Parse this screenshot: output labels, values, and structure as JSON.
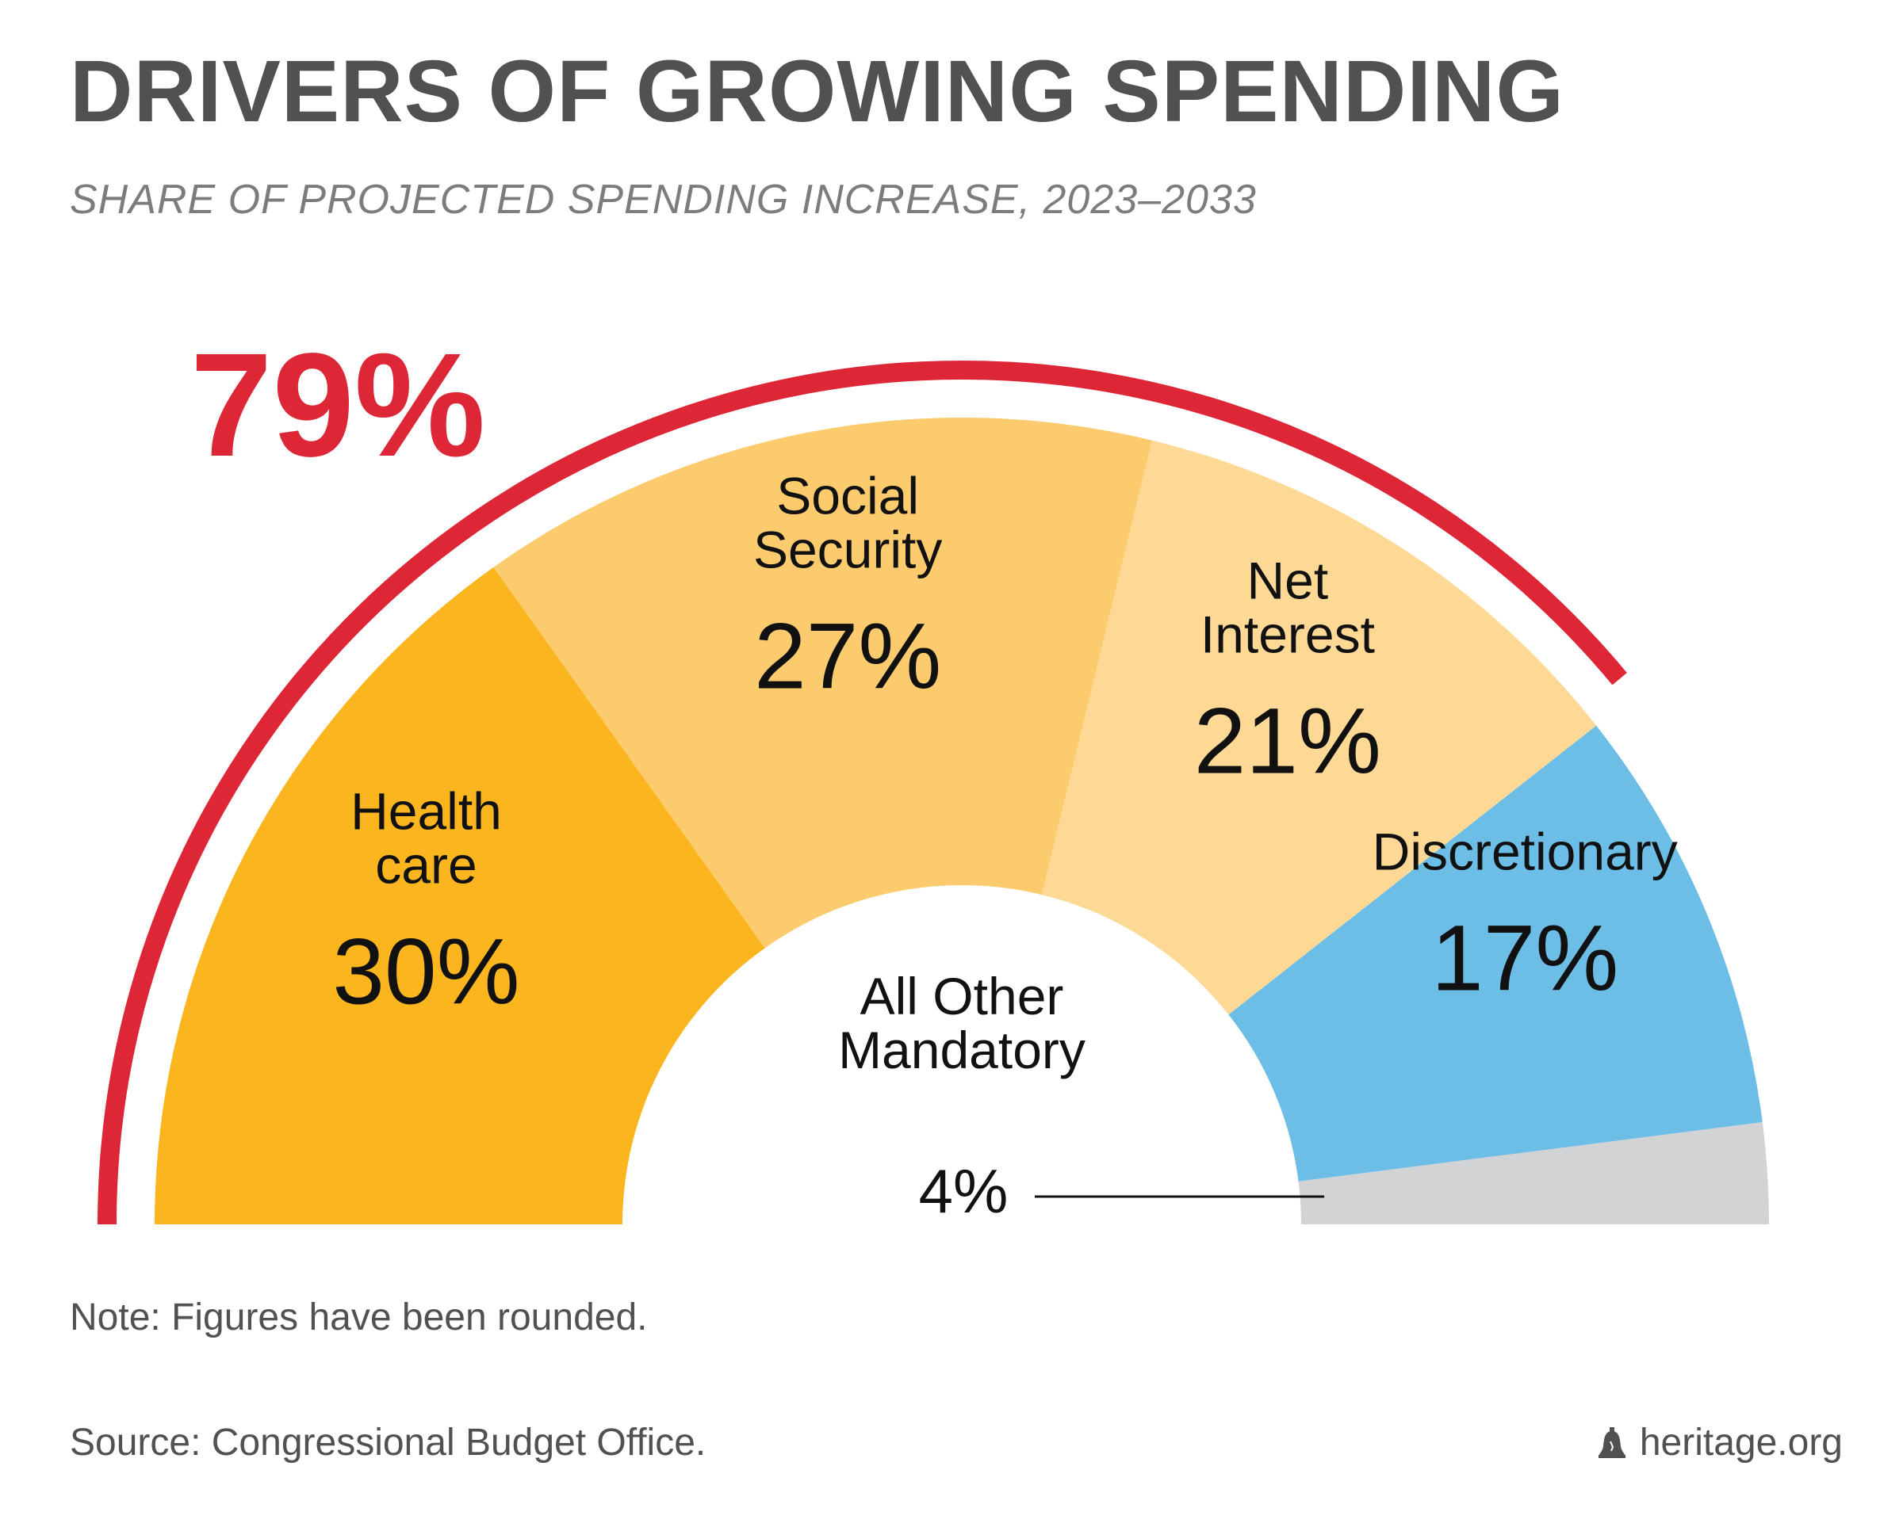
{
  "title": "DRIVERS OF GROWING SPENDING",
  "subtitle": "SHARE OF PROJECTED SPENDING INCREASE, 2023–2033",
  "note": "Note: Figures have been rounded.",
  "source": "Source: Congressional Budget Office.",
  "credit": "heritage.org",
  "credit_icon": "liberty-bell-icon",
  "colors": {
    "title": "#505153",
    "subtitle": "#7b7c7e",
    "bracket": "#dd2736",
    "label": "#111111"
  },
  "chart_data": {
    "type": "pie",
    "shape": "half-donut",
    "title": "DRIVERS OF GROWING SPENDING",
    "subtitle": "SHARE OF PROJECTED SPENDING INCREASE, 2023–2033",
    "unit": "%",
    "slices": [
      {
        "label_lines": [
          "Health",
          "care"
        ],
        "value": 30,
        "value_label": "30%",
        "color": "#fbb61f"
      },
      {
        "label_lines": [
          "Social",
          "Security"
        ],
        "value": 27,
        "value_label": "27%",
        "color": "#fccb6e"
      },
      {
        "label_lines": [
          "Net",
          "Interest"
        ],
        "value": 21,
        "value_label": "21%",
        "color": "#fdd995"
      },
      {
        "label_lines": [
          "Discretionary"
        ],
        "value": 17,
        "value_label": "17%",
        "color": "#6cbee6"
      },
      {
        "label_lines": [
          "All Other",
          "Mandatory"
        ],
        "value": 4,
        "value_label": "4%",
        "color": "#d2d3d5"
      }
    ],
    "bracket": {
      "label": "79%",
      "covers": [
        "Health care",
        "Social Security",
        "Net Interest"
      ],
      "color": "#dd2736"
    }
  }
}
